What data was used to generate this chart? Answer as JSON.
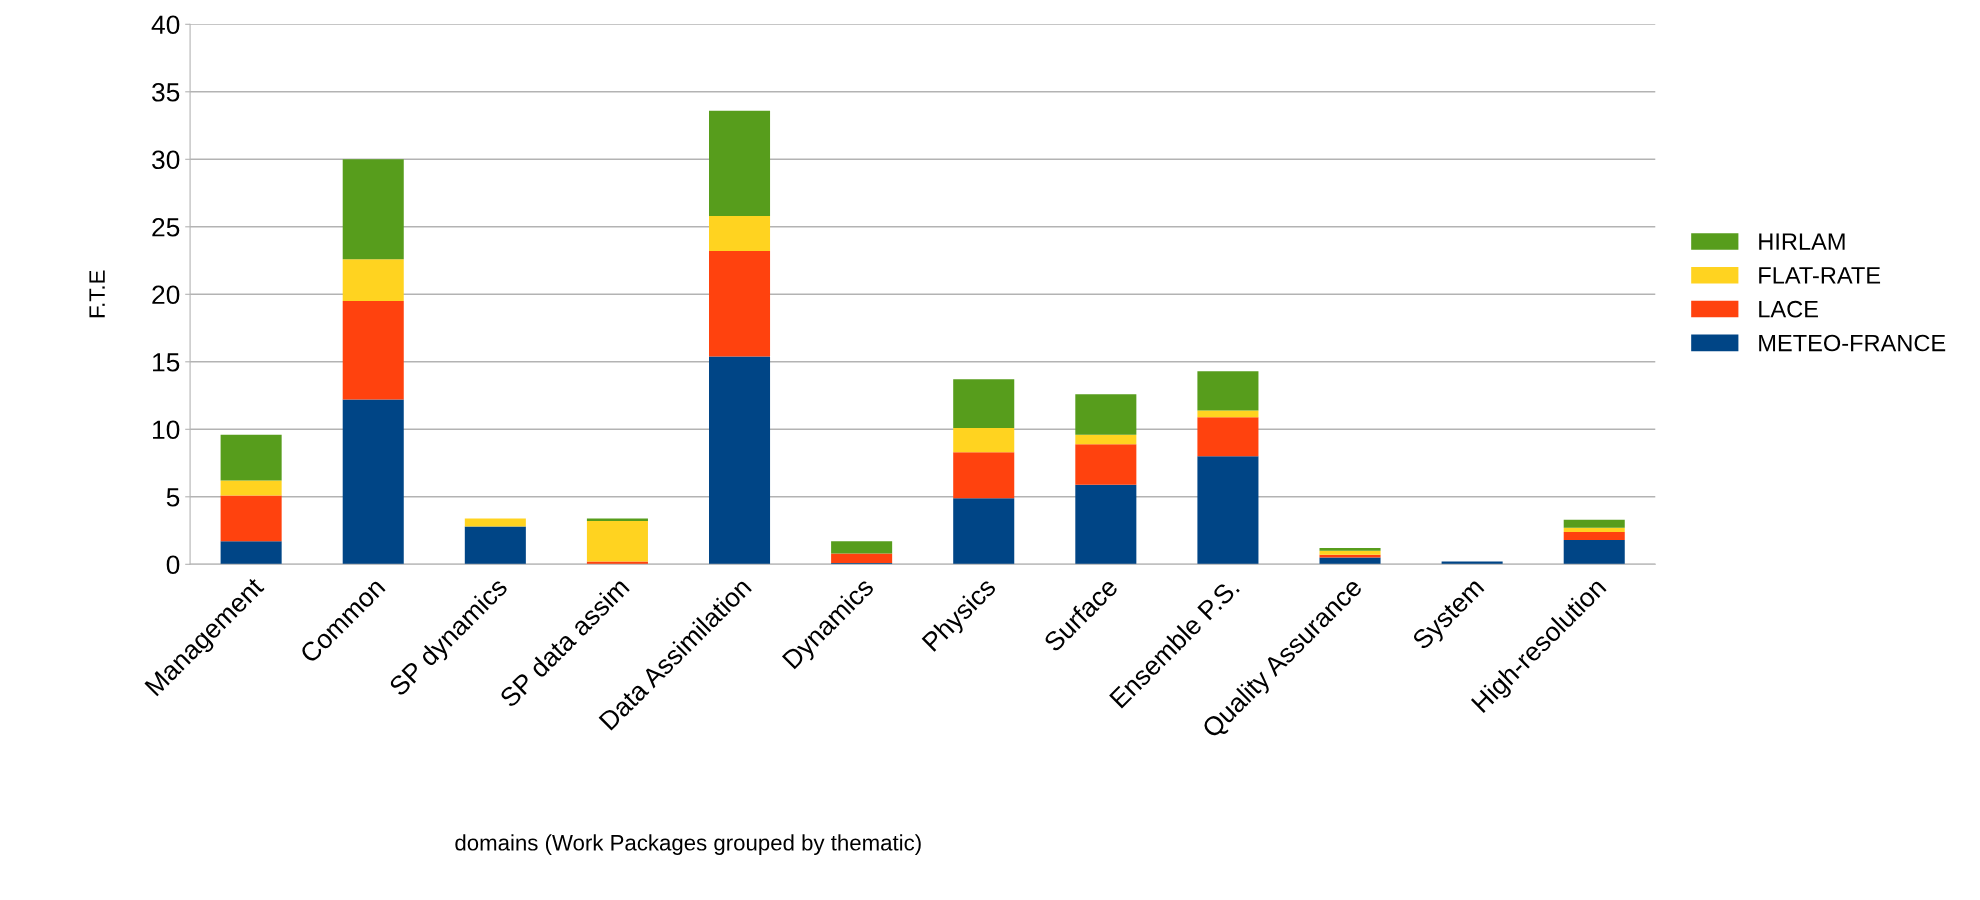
{
  "chart_data": {
    "type": "bar",
    "stacked": true,
    "xlabel": "domains (Work Packages grouped by thematic)",
    "ylabel": "F.T.E",
    "categories": [
      "Management",
      "Common",
      "SP dynamics",
      "SP data assim",
      "Data Assimilation",
      "Dynamics",
      "Physics",
      "Surface",
      "Ensemble P.S.",
      "Quality Assurance",
      "System",
      "High-resolution"
    ],
    "series": [
      {
        "name": "METEO-FRANCE",
        "color": "#004586",
        "values": [
          1.7,
          12.2,
          2.8,
          0,
          15.4,
          0.1,
          4.9,
          5.9,
          8.0,
          0.5,
          0.2,
          1.8
        ]
      },
      {
        "name": "LACE",
        "color": "#ff420e",
        "values": [
          3.4,
          7.3,
          0,
          0.2,
          7.8,
          0.7,
          3.4,
          3.0,
          2.9,
          0.2,
          0,
          0.6
        ]
      },
      {
        "name": "FLAT-RATE",
        "color": "#ffd320",
        "values": [
          1.1,
          3.1,
          0.6,
          3.0,
          2.6,
          0,
          1.8,
          0.7,
          0.5,
          0.3,
          0,
          0.3
        ]
      },
      {
        "name": "HIRLAM",
        "color": "#579d1c",
        "values": [
          3.4,
          7.4,
          0,
          0.2,
          7.8,
          0.9,
          3.6,
          3.0,
          2.9,
          0.2,
          0,
          0.6
        ]
      }
    ],
    "ylim": [
      0,
      40
    ],
    "yticks": [
      0,
      5,
      10,
      15,
      20,
      25,
      30,
      35,
      40
    ],
    "grid": "y",
    "legend": "right"
  }
}
